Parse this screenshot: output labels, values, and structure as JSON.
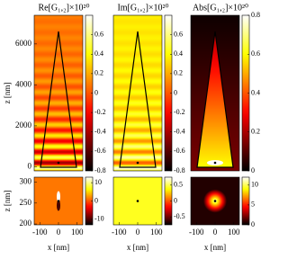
{
  "chart_data": [
    {
      "type": "heatmap",
      "title": "Re[G₁,₂]×10²⁰",
      "ylabel": "z [nm]",
      "ylim": [
        -200,
        7400
      ],
      "yticks": [
        0,
        2000,
        4000,
        6000
      ],
      "clim": [
        -0.8,
        0.8
      ],
      "cticks": [
        0.6,
        0.4,
        0.2,
        0,
        -0.2,
        -0.4,
        -0.6,
        -0.8
      ],
      "colormap": "hot"
    },
    {
      "type": "heatmap",
      "title": "Im[G₁,₂]×10²⁰",
      "ylim": [
        -200,
        7400
      ],
      "clim": [
        -0.8,
        0.8
      ],
      "cticks": [
        0.6,
        0.4,
        0.2,
        0,
        -0.2,
        -0.4,
        -0.6,
        -0.8
      ],
      "colormap": "hot"
    },
    {
      "type": "heatmap",
      "title": "Abs[G₁,₂]×10²⁰",
      "ylim": [
        -200,
        7400
      ],
      "clim": [
        0,
        0.8
      ],
      "cticks": [
        0.8,
        0.6,
        0.4,
        0.2,
        0
      ],
      "colormap": "hot"
    },
    {
      "type": "heatmap",
      "xlabel": "x [nm]",
      "ylabel": "z [nm]",
      "xlim": [
        -130,
        130
      ],
      "xticks": [
        -100,
        0,
        100
      ],
      "ylim": [
        198,
        312
      ],
      "yticks": [
        200,
        250,
        300
      ],
      "clim": [
        -13,
        13
      ],
      "cticks": [
        10,
        0,
        -10
      ],
      "colormap": "hot"
    },
    {
      "type": "heatmap",
      "xlabel": "x [nm]",
      "xlim": [
        -130,
        130
      ],
      "xticks": [
        -100,
        0,
        100
      ],
      "ylim": [
        198,
        312
      ],
      "clim": [
        -0.75,
        0.75
      ],
      "cticks": [
        0.5,
        0,
        -0.5
      ],
      "colormap": "hot"
    },
    {
      "type": "heatmap",
      "xlabel": "x [nm]",
      "xlim": [
        -130,
        130
      ],
      "xticks": [
        -100,
        0,
        100
      ],
      "ylim": [
        198,
        312
      ],
      "clim": [
        0,
        12
      ],
      "cticks": [
        10,
        5,
        0
      ],
      "colormap": "hot"
    }
  ]
}
